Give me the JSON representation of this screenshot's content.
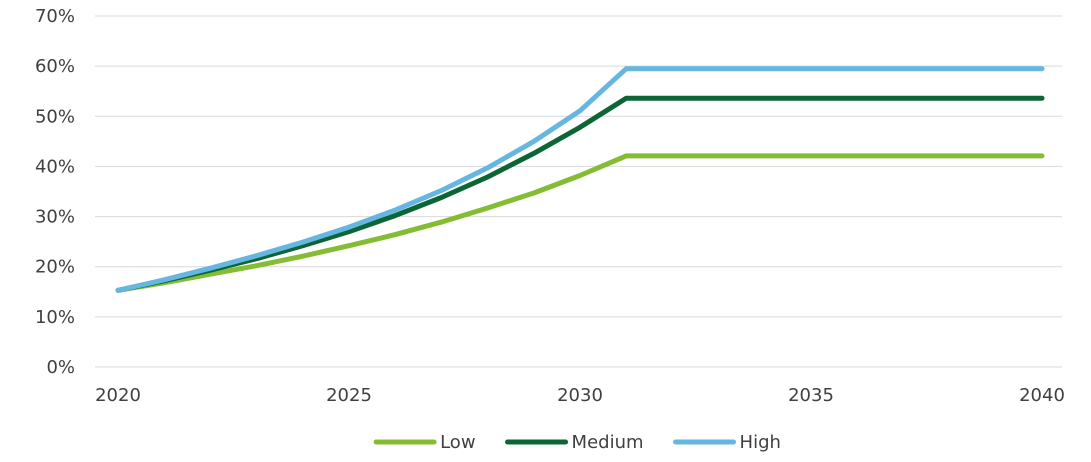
{
  "chart_data": {
    "type": "line",
    "x": [
      2020,
      2021,
      2022,
      2023,
      2024,
      2025,
      2026,
      2027,
      2028,
      2029,
      2030,
      2031,
      2032,
      2033,
      2034,
      2035,
      2036,
      2037,
      2038,
      2039,
      2040
    ],
    "series": [
      {
        "name": "Low",
        "color": "#84bd33",
        "values": [
          15.3,
          16.8,
          18.5,
          20.2,
          22.1,
          24.2,
          26.4,
          28.9,
          31.7,
          34.7,
          38.2,
          42.1,
          42.1,
          42.1,
          42.1,
          42.1,
          42.1,
          42.1,
          42.1,
          42.1,
          42.1
        ]
      },
      {
        "name": "Medium",
        "color": "#0b6535",
        "values": [
          15.3,
          17.2,
          19.3,
          21.6,
          24.2,
          27.0,
          30.2,
          33.8,
          37.9,
          42.6,
          47.8,
          53.6,
          53.6,
          53.6,
          53.6,
          53.6,
          53.6,
          53.6,
          53.6,
          53.6,
          53.6
        ]
      },
      {
        "name": "High",
        "color": "#66b6e2",
        "values": [
          15.3,
          17.4,
          19.7,
          22.2,
          24.9,
          27.9,
          31.3,
          35.2,
          39.7,
          45.0,
          51.1,
          59.5,
          59.5,
          59.5,
          59.5,
          59.5,
          59.5,
          59.5,
          59.5,
          59.5,
          59.5
        ]
      }
    ],
    "xlim": [
      2020,
      2040
    ],
    "ylim": [
      0,
      70
    ],
    "x_tick_labels": [
      "2020",
      "2025",
      "2030",
      "2035",
      "2040"
    ],
    "x_tick_values": [
      2020,
      2025,
      2030,
      2035,
      2040
    ],
    "y_tick_labels": [
      "0%",
      "10%",
      "20%",
      "30%",
      "40%",
      "50%",
      "60%",
      "70%"
    ],
    "y_tick_values": [
      0,
      10,
      20,
      30,
      40,
      50,
      60,
      70
    ],
    "grid": "horizontal",
    "legend_position": "bottom",
    "colors": {
      "gridline": "#d9d9d9",
      "text": "#404040"
    }
  }
}
